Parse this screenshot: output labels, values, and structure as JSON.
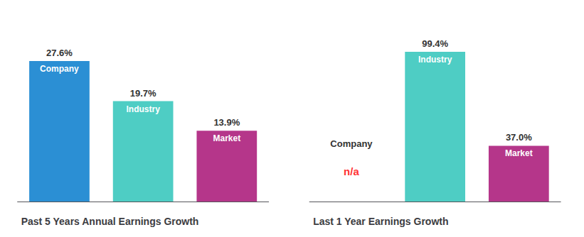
{
  "chart_data": [
    {
      "type": "bar",
      "title": "Past 5 Years Annual Earnings Growth",
      "categories": [
        "Company",
        "Industry",
        "Market"
      ],
      "values": [
        27.6,
        19.7,
        13.9
      ],
      "value_labels": [
        "27.6%",
        "19.7%",
        "13.9%"
      ],
      "colors": [
        "#2b8fd4",
        "#4ecdc4",
        "#b5368a"
      ],
      "ylim": [
        0,
        34.0
      ],
      "data_labels": true,
      "tick_labels": false,
      "grid": false
    },
    {
      "type": "bar",
      "title": "Last 1 Year Earnings Growth",
      "categories": [
        "Company",
        "Industry",
        "Market"
      ],
      "values": [
        null,
        99.4,
        37.0
      ],
      "value_labels": [
        "n/a",
        "99.4%",
        "37.0%"
      ],
      "colors": [
        "#ff3333",
        "#4ecdc4",
        "#b5368a"
      ],
      "ylim": [
        0,
        115.0
      ],
      "data_labels": true,
      "tick_labels": false,
      "grid": false
    }
  ]
}
